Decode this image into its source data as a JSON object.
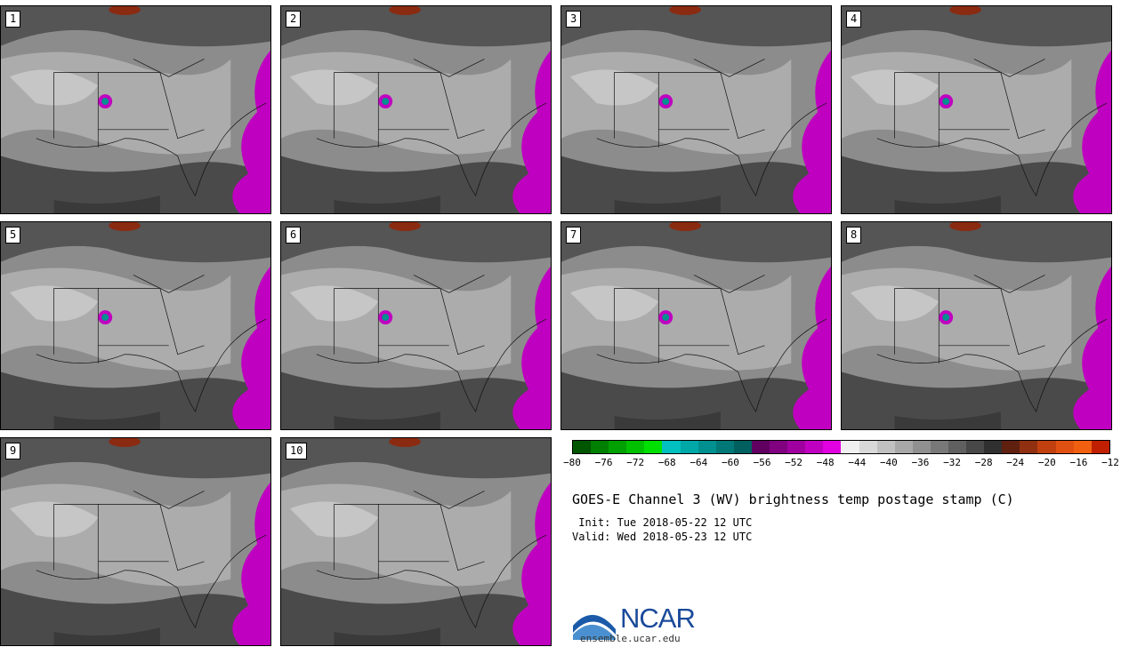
{
  "panels": [
    {
      "label": "1"
    },
    {
      "label": "2"
    },
    {
      "label": "3"
    },
    {
      "label": "4"
    },
    {
      "label": "5"
    },
    {
      "label": "6"
    },
    {
      "label": "7"
    },
    {
      "label": "8"
    },
    {
      "label": "9"
    },
    {
      "label": "10"
    }
  ],
  "colorbar": {
    "colors": [
      "#005500",
      "#008000",
      "#00a000",
      "#00c000",
      "#00e000",
      "#00c0c0",
      "#00a8a8",
      "#009090",
      "#007878",
      "#006060",
      "#600060",
      "#800080",
      "#a000a0",
      "#c000c0",
      "#e000e0",
      "#f0f0f0",
      "#d8d8d8",
      "#c0c0c0",
      "#a8a8a8",
      "#909090",
      "#787878",
      "#606060",
      "#484848",
      "#303030",
      "#602010",
      "#903010",
      "#c04010",
      "#e05010",
      "#f06010",
      "#c02000"
    ],
    "ticks": [
      "−80",
      "−76",
      "−72",
      "−68",
      "−64",
      "−60",
      "−56",
      "−52",
      "−48",
      "−44",
      "−40",
      "−36",
      "−32",
      "−28",
      "−24",
      "−20",
      "−16",
      "−12"
    ]
  },
  "title": "GOES-E Channel 3 (WV) brightness temp postage stamp (C)",
  "init": " Init: Tue 2018-05-22 12 UTC",
  "valid": "Valid: Wed 2018-05-23 12 UTC",
  "logo": {
    "text": "NCAR",
    "url": "ensemble.ucar.edu"
  }
}
